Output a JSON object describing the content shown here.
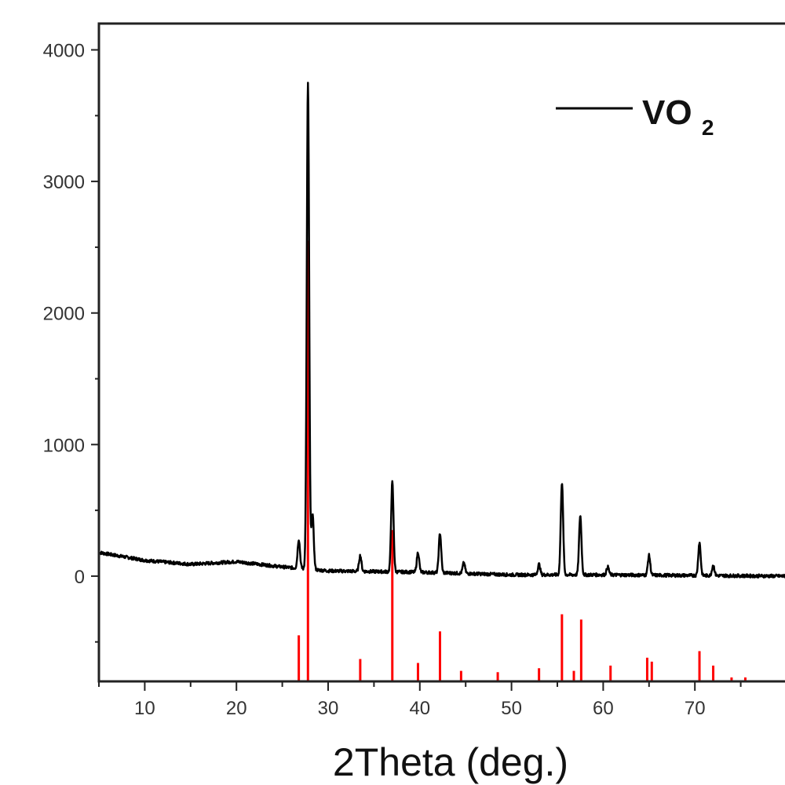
{
  "chart_data": {
    "type": "line",
    "title": "",
    "xlabel": "2Theta (deg.)",
    "ylabel": "",
    "xlim": [
      5,
      80
    ],
    "ylim": [
      -800,
      4200
    ],
    "x_ticks": [
      10,
      20,
      30,
      40,
      50,
      60,
      70
    ],
    "y_ticks": [
      0,
      1000,
      2000,
      3000,
      4000
    ],
    "x_tick_labels": [
      "10",
      "20",
      "30",
      "40",
      "50",
      "60",
      "70"
    ],
    "y_tick_labels": [
      "0",
      "1000",
      "2000",
      "3000",
      "4000"
    ],
    "grid": false,
    "legend": {
      "position": "top-right",
      "entries": [
        {
          "label_main": "VO",
          "label_sub": "2",
          "color": "#000000"
        }
      ]
    },
    "series": [
      {
        "name": "VO2",
        "color": "#000000",
        "kind": "xrd-pattern",
        "background": [
          [
            5,
            180
          ],
          [
            10,
            120
          ],
          [
            15,
            90
          ],
          [
            20,
            110
          ],
          [
            25,
            70
          ],
          [
            30,
            40
          ],
          [
            40,
            30
          ],
          [
            50,
            10
          ],
          [
            60,
            10
          ],
          [
            70,
            5
          ],
          [
            80,
            0
          ]
        ],
        "peaks": [
          [
            26.8,
            220
          ],
          [
            27.8,
            3700
          ],
          [
            28.3,
            420
          ],
          [
            33.5,
            120
          ],
          [
            37.0,
            680
          ],
          [
            39.8,
            150
          ],
          [
            42.2,
            300
          ],
          [
            44.8,
            80
          ],
          [
            53.0,
            80
          ],
          [
            55.5,
            700
          ],
          [
            57.5,
            450
          ],
          [
            60.5,
            60
          ],
          [
            65.0,
            150
          ],
          [
            70.5,
            250
          ],
          [
            72.0,
            80
          ]
        ]
      },
      {
        "color": "#ff0000",
        "kind": "reference-sticks",
        "baseline": -800,
        "sticks": [
          [
            26.8,
            -450
          ],
          [
            27.8,
            2550
          ],
          [
            33.5,
            -630
          ],
          [
            37.0,
            350
          ],
          [
            39.8,
            -660
          ],
          [
            42.2,
            -420
          ],
          [
            44.5,
            -720
          ],
          [
            48.5,
            -730
          ],
          [
            53.0,
            -700
          ],
          [
            55.5,
            -290
          ],
          [
            56.8,
            -720
          ],
          [
            57.6,
            -330
          ],
          [
            60.8,
            -680
          ],
          [
            64.8,
            -620
          ],
          [
            65.3,
            -650
          ],
          [
            70.5,
            -570
          ],
          [
            72.0,
            -680
          ],
          [
            74.0,
            -770
          ],
          [
            75.5,
            -770
          ],
          [
            79.8,
            -800
          ]
        ]
      }
    ]
  }
}
